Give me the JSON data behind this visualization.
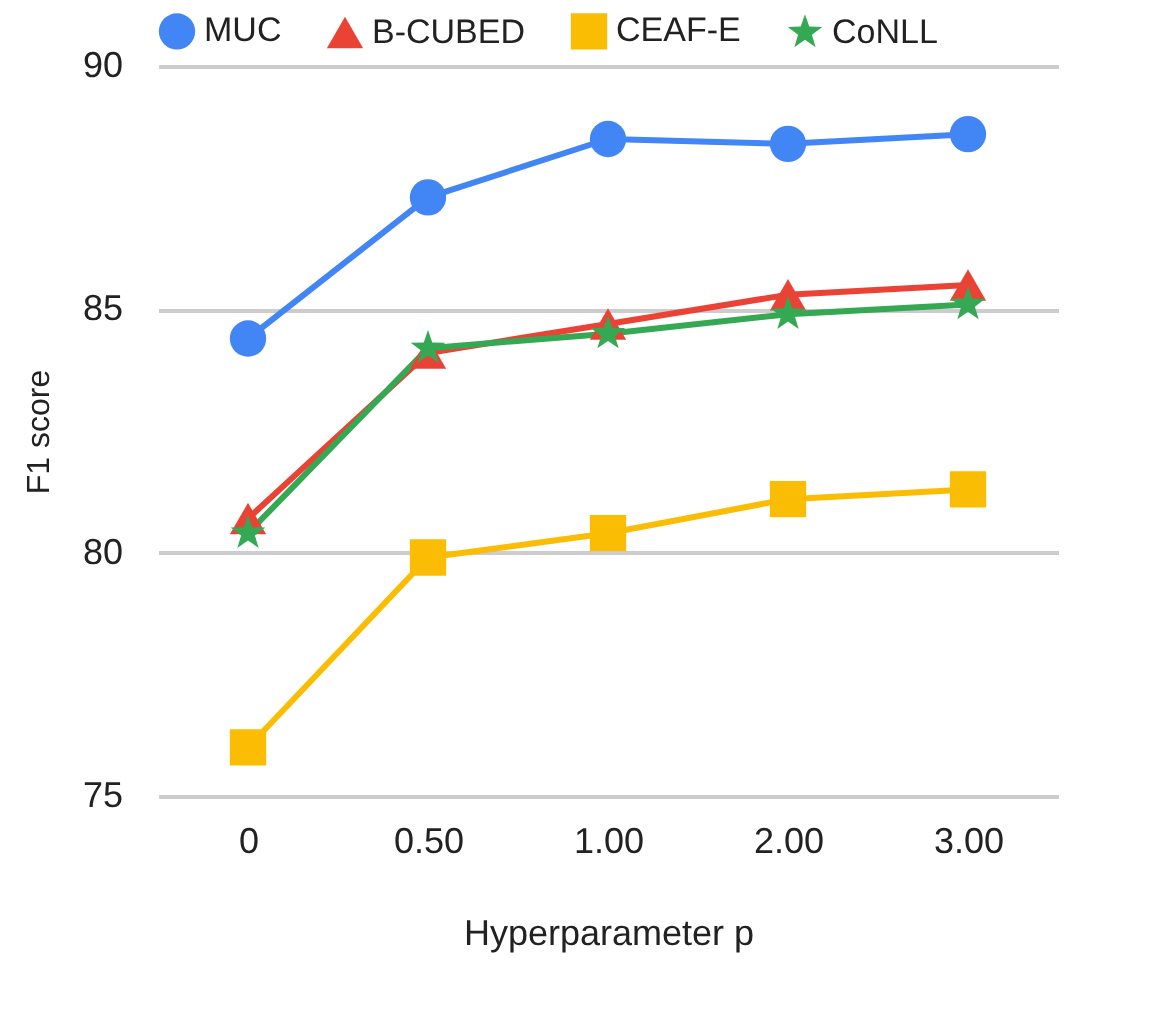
{
  "chart_data": {
    "type": "line",
    "xlabel": "Hyperparameter p",
    "ylabel": "F1 score",
    "categories": [
      "0",
      "0.50",
      "1.00",
      "2.00",
      "3.00"
    ],
    "ylim": [
      75,
      90
    ],
    "yticks": [
      75,
      80,
      85,
      90
    ],
    "grid": "y",
    "legend": "top",
    "line_style": "solid",
    "series": [
      {
        "name": "MUC",
        "color": "#4285f4",
        "marker": "circle",
        "values": [
          84.4,
          87.3,
          88.5,
          88.4,
          88.6
        ]
      },
      {
        "name": "B-CUBED",
        "color": "#ea4335",
        "marker": "triangle",
        "values": [
          80.7,
          84.1,
          84.7,
          85.3,
          85.5
        ]
      },
      {
        "name": "CEAF-E",
        "color": "#fbbc04",
        "marker": "square",
        "values": [
          76.0,
          79.9,
          80.4,
          81.1,
          81.3
        ]
      },
      {
        "name": "CoNLL",
        "color": "#34a853",
        "marker": "star",
        "values": [
          80.4,
          84.2,
          84.5,
          84.9,
          85.1
        ]
      }
    ]
  }
}
